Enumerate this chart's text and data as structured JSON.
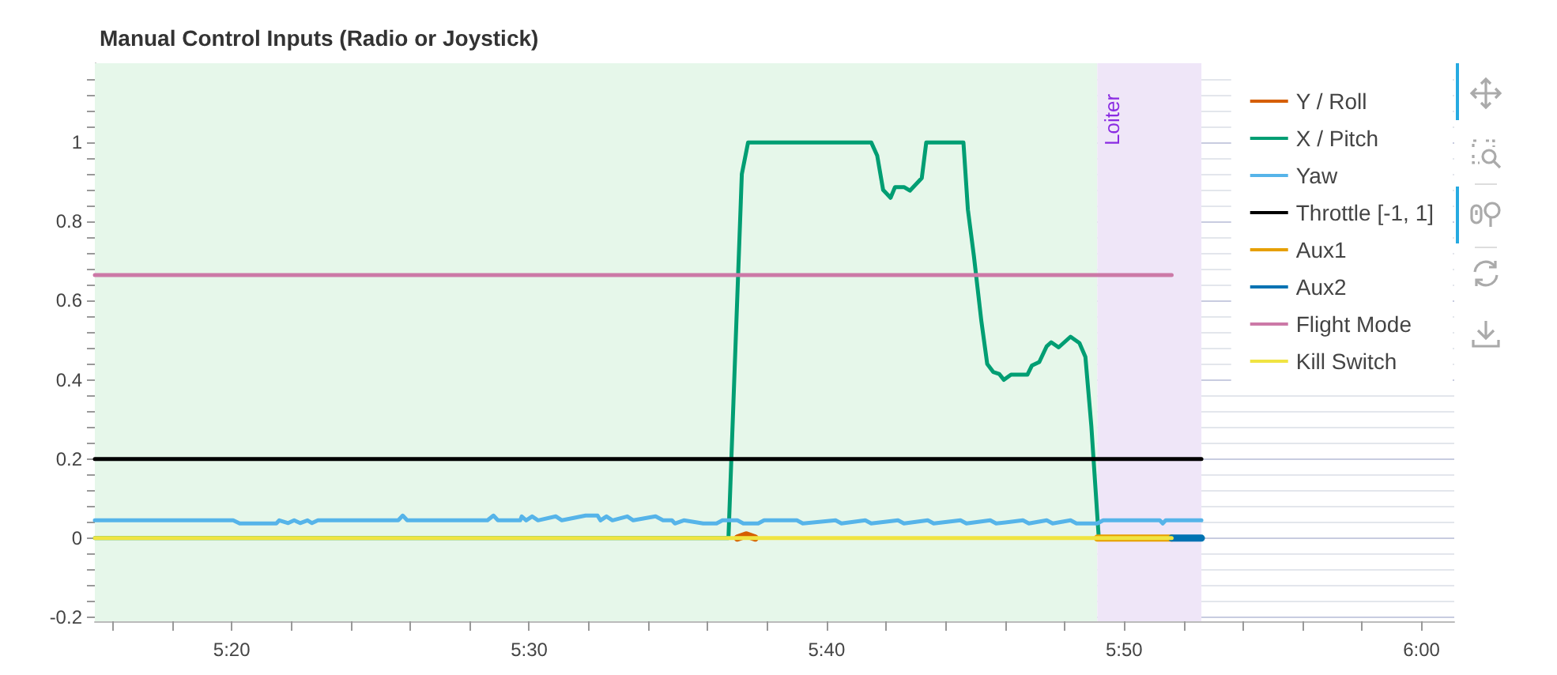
{
  "chart_data": {
    "type": "line",
    "title": "Manual Control Inputs (Radio or Joystick)",
    "xlim": [
      315.4,
      361.1
    ],
    "xticks": [
      {
        "value": 316,
        "label": null
      },
      {
        "value": 318,
        "label": null
      },
      {
        "value": 320,
        "label": "5:20"
      },
      {
        "value": 322,
        "label": null
      },
      {
        "value": 324,
        "label": null
      },
      {
        "value": 326,
        "label": null
      },
      {
        "value": 328,
        "label": null
      },
      {
        "value": 330,
        "label": "5:30"
      },
      {
        "value": 332,
        "label": null
      },
      {
        "value": 334,
        "label": null
      },
      {
        "value": 336,
        "label": null
      },
      {
        "value": 338,
        "label": null
      },
      {
        "value": 340,
        "label": "5:40"
      },
      {
        "value": 342,
        "label": null
      },
      {
        "value": 344,
        "label": null
      },
      {
        "value": 346,
        "label": null
      },
      {
        "value": 348,
        "label": null
      },
      {
        "value": 350,
        "label": "5:50"
      },
      {
        "value": 352,
        "label": null
      },
      {
        "value": 354,
        "label": null
      },
      {
        "value": 356,
        "label": null
      },
      {
        "value": 358,
        "label": null
      },
      {
        "value": 360,
        "label": "6:00"
      }
    ],
    "ylim": [
      -0.21,
      1.2
    ],
    "yticks": [
      -0.2,
      {
        "value": -0.16,
        "label": null
      },
      {
        "value": -0.12,
        "label": null
      },
      {
        "value": -0.08,
        "label": null
      },
      {
        "value": -0.04,
        "label": null
      },
      0,
      {
        "value": 0.04,
        "label": null
      },
      {
        "value": 0.08,
        "label": null
      },
      {
        "value": 0.12,
        "label": null
      },
      {
        "value": 0.16,
        "label": null
      },
      0.2,
      {
        "value": 0.24,
        "label": null
      },
      {
        "value": 0.28,
        "label": null
      },
      {
        "value": 0.32,
        "label": null
      },
      {
        "value": 0.36,
        "label": null
      },
      0.4,
      {
        "value": 0.44,
        "label": null
      },
      {
        "value": 0.48,
        "label": null
      },
      {
        "value": 0.52,
        "label": null
      },
      {
        "value": 0.56,
        "label": null
      },
      0.6,
      {
        "value": 0.64,
        "label": null
      },
      {
        "value": 0.68,
        "label": null
      },
      {
        "value": 0.72,
        "label": null
      },
      {
        "value": 0.76,
        "label": null
      },
      0.8,
      {
        "value": 0.84,
        "label": null
      },
      {
        "value": 0.88,
        "label": null
      },
      {
        "value": 0.92,
        "label": null
      },
      {
        "value": 0.96,
        "label": null
      },
      1,
      {
        "value": 1.04,
        "label": null
      },
      {
        "value": 1.08,
        "label": null
      },
      {
        "value": 1.12,
        "label": null
      },
      {
        "value": 1.16,
        "label": null
      }
    ],
    "grid": "y",
    "legend": "top right",
    "marker": "none",
    "line_style": "solid",
    "bands": [
      {
        "axis": "x",
        "from": 315.4,
        "to": 349.1,
        "color": "#e6f7ea"
      },
      {
        "axis": "x",
        "from": 349.1,
        "to": 352.6,
        "label": "Loiter",
        "color": "#efe6f8"
      }
    ],
    "series": [
      {
        "name": "Y / Roll",
        "color": "#d55e00",
        "x": [
          337.0,
          337.3,
          337.6
        ],
        "values": [
          0,
          0.008,
          0
        ]
      },
      {
        "name": "X / Pitch",
        "color": "#009e73",
        "x": [
          315.4,
          336.7,
          337.15,
          337.36,
          341.5,
          341.7,
          341.9,
          342.15,
          342.3,
          342.6,
          342.8,
          343.2,
          343.35,
          344.6,
          344.75,
          344.95,
          345.2,
          345.4,
          345.6,
          345.8,
          345.96,
          346.2,
          346.75,
          346.9,
          347.15,
          347.4,
          347.55,
          347.8,
          348.2,
          348.5,
          348.7,
          348.9,
          349.15
        ],
        "values": [
          0,
          0,
          0.92,
          1,
          1,
          0.967,
          0.88,
          0.86,
          0.887,
          0.887,
          0.878,
          0.91,
          1,
          1,
          0.83,
          0.714,
          0.55,
          0.44,
          0.42,
          0.415,
          0.4,
          0.413,
          0.413,
          0.436,
          0.445,
          0.485,
          0.495,
          0.482,
          0.509,
          0.493,
          0.458,
          0.283,
          0
        ]
      },
      {
        "name": "Yaw",
        "color": "#56b4e9",
        "x": [
          315.4,
          320.05,
          320.27,
          321.5,
          321.6,
          321.9,
          322.1,
          322.3,
          322.55,
          322.7,
          322.9,
          325.6,
          325.75,
          325.9,
          328.6,
          328.8,
          328.95,
          329.7,
          329.75,
          329.9,
          330.1,
          330.3,
          330.9,
          331.1,
          331.9,
          332.3,
          332.4,
          332.6,
          332.8,
          333.3,
          333.5,
          334.25,
          334.5,
          334.8,
          334.9,
          335.2,
          335.85,
          336.3,
          336.5,
          337.0,
          337.2,
          337.7,
          337.9,
          339.0,
          339.2,
          340.3,
          340.5,
          341.3,
          341.5,
          342.4,
          342.6,
          343.4,
          343.6,
          344.5,
          344.7,
          345.5,
          345.7,
          346.6,
          346.8,
          347.4,
          347.6,
          348.2,
          348.4,
          349.1,
          349.3,
          351.2,
          351.3,
          351.4,
          352.6
        ],
        "values": [
          0.045,
          0.045,
          0.037,
          0.037,
          0.045,
          0.038,
          0.045,
          0.038,
          0.045,
          0.038,
          0.045,
          0.045,
          0.057,
          0.045,
          0.045,
          0.057,
          0.045,
          0.045,
          0.055,
          0.045,
          0.055,
          0.045,
          0.055,
          0.045,
          0.057,
          0.057,
          0.045,
          0.055,
          0.045,
          0.055,
          0.045,
          0.055,
          0.045,
          0.045,
          0.037,
          0.045,
          0.037,
          0.037,
          0.045,
          0.045,
          0.037,
          0.037,
          0.045,
          0.045,
          0.037,
          0.045,
          0.037,
          0.045,
          0.037,
          0.045,
          0.037,
          0.045,
          0.037,
          0.045,
          0.037,
          0.045,
          0.037,
          0.045,
          0.037,
          0.045,
          0.037,
          0.045,
          0.037,
          0.037,
          0.045,
          0.045,
          0.037,
          0.045,
          0.045
        ]
      },
      {
        "name": "Throttle [-1, 1]",
        "color": "#000000",
        "x": [
          315.4,
          352.6
        ],
        "values": [
          0.2,
          0.2
        ]
      },
      {
        "name": "Aux1",
        "color": "#e69f00",
        "x": [
          349.1,
          351.6
        ],
        "values": [
          0,
          0
        ]
      },
      {
        "name": "Aux2",
        "color": "#0072b2",
        "x": [
          351.6,
          352.6
        ],
        "values": [
          0,
          0
        ]
      },
      {
        "name": "Flight Mode",
        "color": "#cc79a7",
        "x": [
          315.4,
          351.6
        ],
        "values": [
          0.665,
          0.665
        ]
      },
      {
        "name": "Kill Switch",
        "color": "#f0e442",
        "x": [
          315.4,
          351.6
        ],
        "values": [
          0,
          0
        ]
      }
    ]
  }
}
